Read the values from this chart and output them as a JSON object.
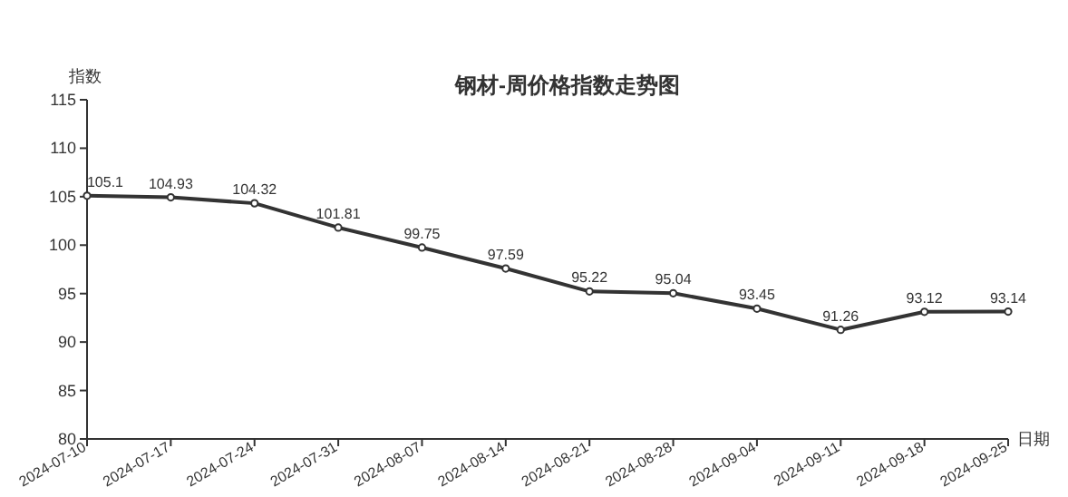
{
  "chart_data": {
    "type": "line",
    "title": "钢材-周价格指数走势图",
    "xlabel": "日期",
    "ylabel": "指数",
    "categories": [
      "2024-07-10",
      "2024-07-17",
      "2024-07-24",
      "2024-07-31",
      "2024-08-07",
      "2024-08-14",
      "2024-08-21",
      "2024-08-28",
      "2024-09-04",
      "2024-09-11",
      "2024-09-18",
      "2024-09-25"
    ],
    "series": [
      {
        "color": "#333333",
        "values": [
          105.1,
          104.93,
          104.32,
          101.81,
          99.75,
          97.59,
          95.22,
          95.04,
          93.45,
          91.26,
          93.12,
          93.14
        ]
      }
    ],
    "ylim": [
      80,
      115
    ],
    "yticks": [
      80,
      85,
      90,
      95,
      100,
      105,
      110,
      115
    ],
    "data_labels": true,
    "marker": "circle",
    "line_style": "solid"
  }
}
